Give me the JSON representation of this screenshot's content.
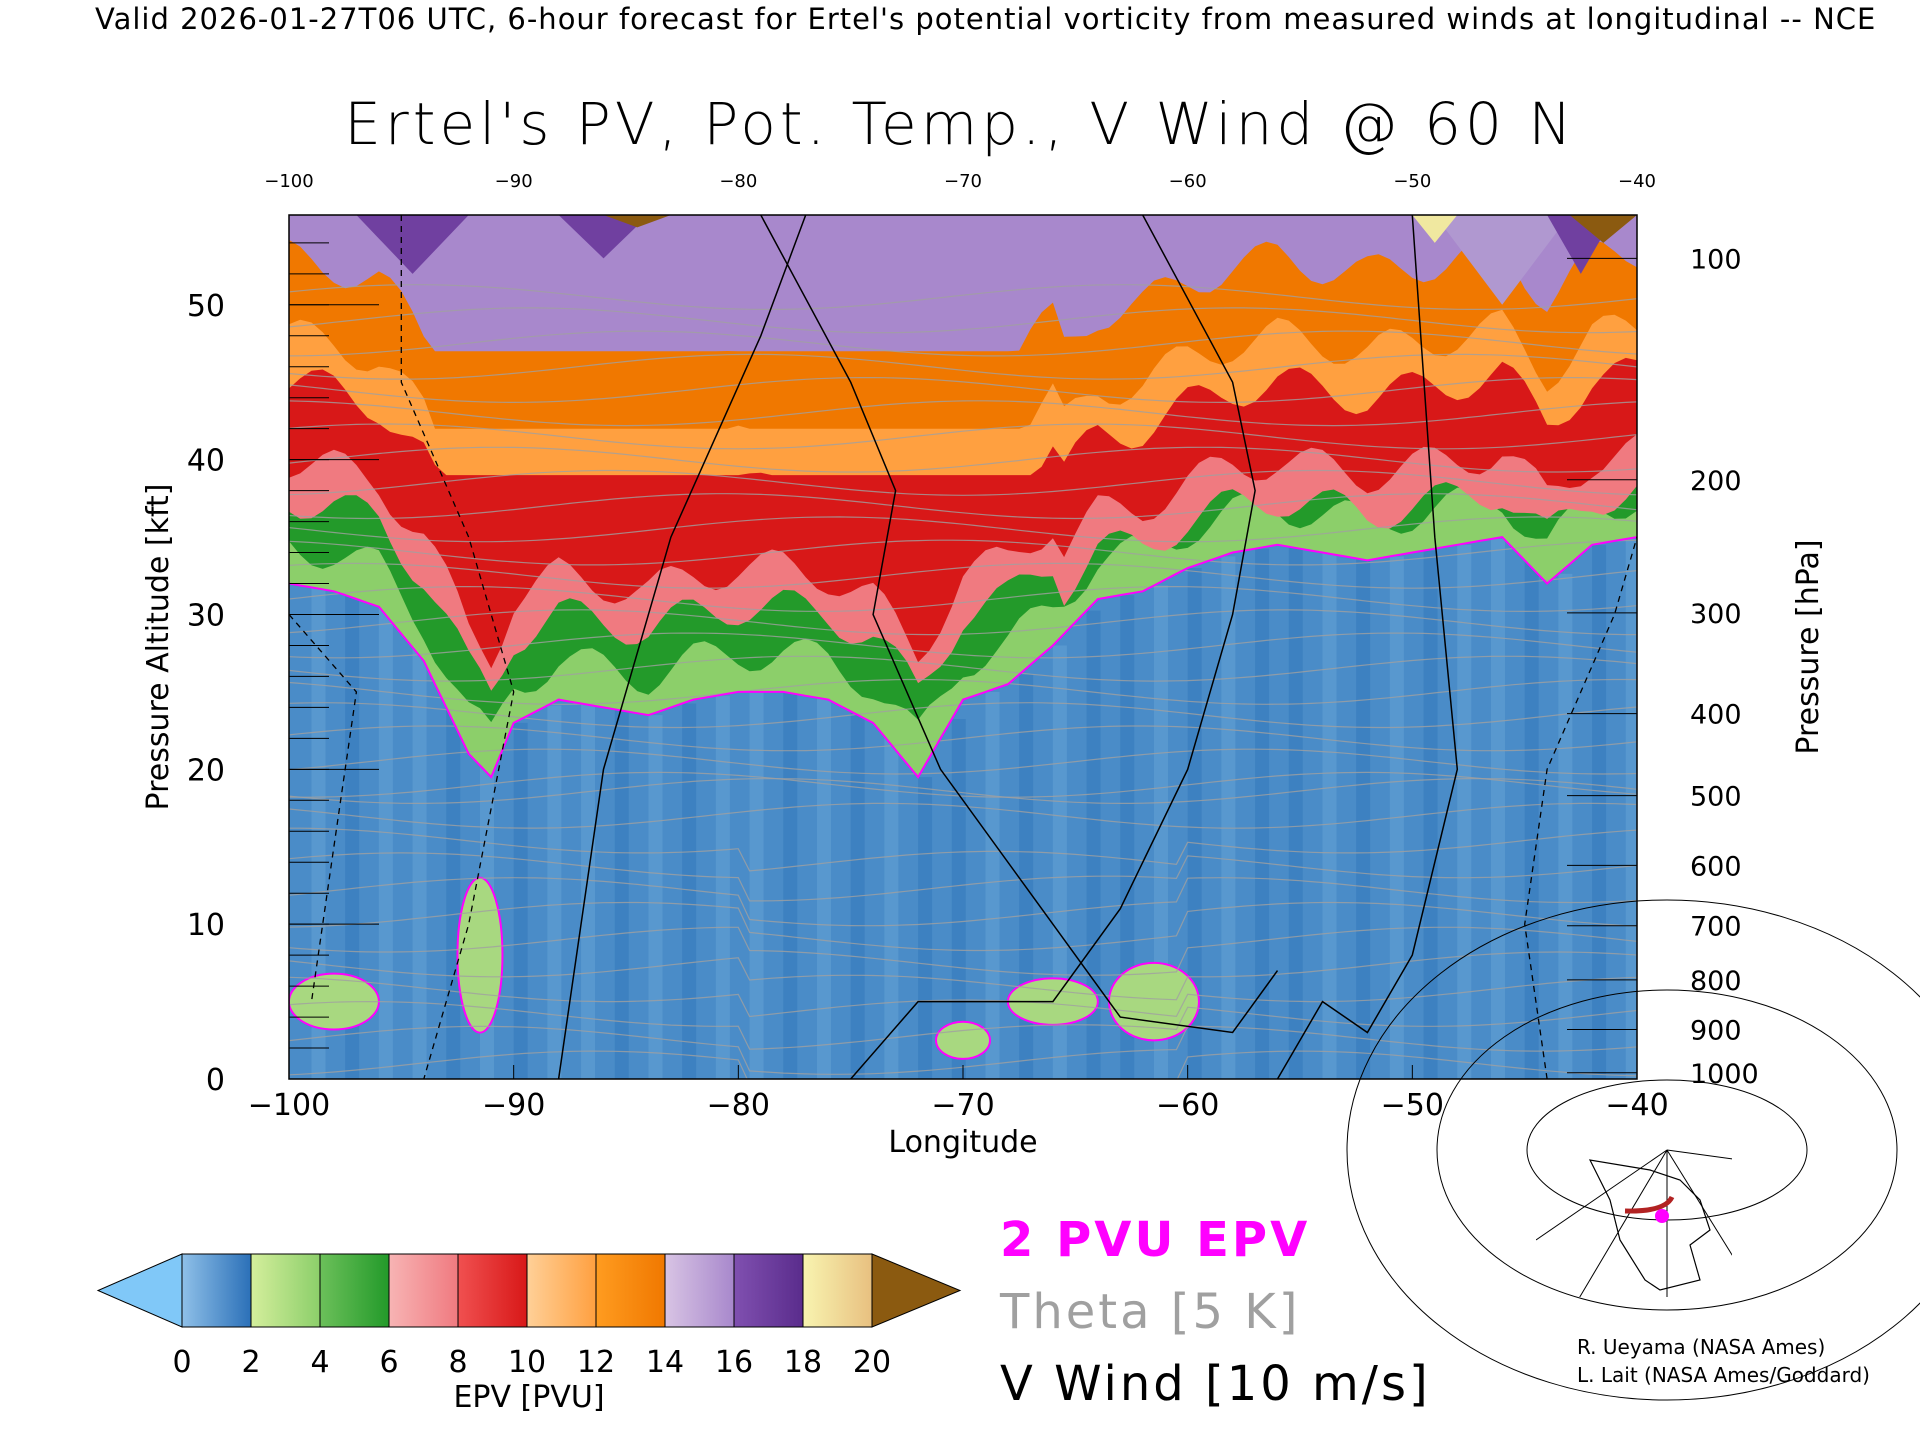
{
  "subtitle": "Valid 2026-01-27T06 UTC, 6-hour forecast for Ertel's potential vorticity from measured winds at longitudinal -- NCE",
  "legend": {
    "pv_contour": "2 PVU EPV",
    "theta": "Theta [5 K]",
    "wind": "V Wind [10 m/s]"
  },
  "credits": [
    "R. Ueyama (NASA Ames)",
    "L. Lait (NASA Ames/Goddard)"
  ],
  "colors": {
    "pv_contour": "#ff00ff",
    "theta": "#a0a0a0",
    "wind": "#000000",
    "map_track": "#b22222",
    "map_point": "#ff00ff"
  },
  "chart_data": {
    "type": "heatmap",
    "title": "Ertel's PV, Pot. Temp., V Wind @ 60 N",
    "xlabel": "Longitude",
    "ylabel": "Pressure Altitude [kft]",
    "y2label": "Pressure [hPa]",
    "xlim": [
      -100,
      -40
    ],
    "ylim": [
      0,
      55.8
    ],
    "xticks": [
      "-100",
      "-90",
      "-80",
      "-70",
      "-60",
      "-50",
      "-40"
    ],
    "xticks_top": [
      "-100",
      "-90",
      "-80",
      "-70",
      "-60",
      "-50",
      "-40"
    ],
    "yticks": [
      "0",
      "10",
      "20",
      "30",
      "40",
      "50"
    ],
    "pressure_ticks": [
      {
        "label": "100",
        "alt": 53.0
      },
      {
        "label": "200",
        "alt": 38.7
      },
      {
        "label": "300",
        "alt": 30.1
      },
      {
        "label": "400",
        "alt": 23.6
      },
      {
        "label": "500",
        "alt": 18.3
      },
      {
        "label": "600",
        "alt": 13.8
      },
      {
        "label": "700",
        "alt": 9.9
      },
      {
        "label": "800",
        "alt": 6.4
      },
      {
        "label": "900",
        "alt": 3.2
      },
      {
        "label": "1000",
        "alt": 0.4
      }
    ],
    "colorbar": {
      "label": "EPV [PVU]",
      "ticks": [
        "0",
        "2",
        "4",
        "6",
        "8",
        "10",
        "12",
        "14",
        "16",
        "18",
        "20"
      ],
      "bins": [
        [
          "#8fc0e8",
          "#2b70b8"
        ],
        [
          "#d4ee9c",
          "#8ccf6a"
        ],
        [
          "#6cc05a",
          "#239a2a"
        ],
        [
          "#f7b4b4",
          "#f07a80"
        ],
        [
          "#f05050",
          "#d81818"
        ],
        [
          "#ffd098",
          "#ffa040"
        ],
        [
          "#ff9c20",
          "#f07800"
        ],
        [
          "#d8c4e4",
          "#a888cc"
        ],
        [
          "#8050b0",
          "#5a2c8c"
        ],
        [
          "#f8f4b0",
          "#e8c080"
        ]
      ],
      "under": "#80c8f8",
      "over": "#8b5a10"
    },
    "pv2_contour_alt_kft": {
      "lon": [
        -100,
        -98,
        -96,
        -94,
        -92,
        -91,
        -90,
        -88,
        -86,
        -84,
        -82,
        -80,
        -78,
        -76,
        -74,
        -72,
        -70,
        -68,
        -66,
        -64,
        -62,
        -60,
        -58,
        -56,
        -54,
        -52,
        -50,
        -48,
        -46,
        -44,
        -42,
        -40
      ],
      "alt": [
        32,
        31.5,
        30.5,
        27,
        21,
        19.5,
        23,
        24.5,
        24,
        23.5,
        24.5,
        25,
        25,
        24.5,
        23,
        19.5,
        24.5,
        25.5,
        28,
        31,
        31.5,
        33,
        34,
        34.5,
        34,
        33.5,
        34,
        34.5,
        35,
        32,
        34.5,
        35
      ]
    },
    "band_tops_above_2pvu_kft": {
      "light_green": 2.5,
      "green": 5.5,
      "red": 13,
      "orange": 21
    }
  }
}
